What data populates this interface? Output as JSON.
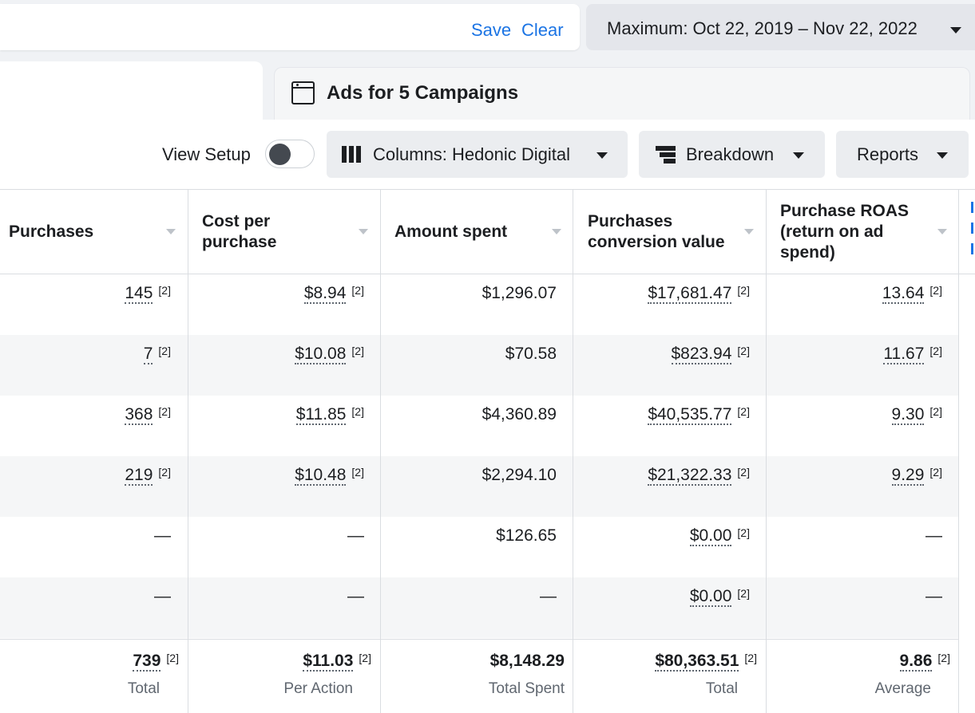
{
  "topbar": {
    "save_label": "Save",
    "clear_label": "Clear",
    "date_range": "Maximum: Oct 22, 2019 – Nov 22, 2022"
  },
  "tab": {
    "title": "Ads for 5 Campaigns"
  },
  "toolbar": {
    "view_setup_label": "View Setup",
    "view_setup_on": false,
    "columns_label": "Columns: Hedonic Digital",
    "breakdown_label": "Breakdown",
    "reports_label": "Reports"
  },
  "table": {
    "headers": [
      "Purchases",
      "Cost per purchase",
      "Amount spent",
      "Purchases conversion value",
      "Purchase ROAS (return on ad spend)"
    ],
    "rows": [
      [
        "145",
        "$8.94",
        "$1,296.07",
        "$17,681.47",
        "13.64"
      ],
      [
        "7",
        "$10.08",
        "$70.58",
        "$823.94",
        "11.67"
      ],
      [
        "368",
        "$11.85",
        "$4,360.89",
        "$40,535.77",
        "9.30"
      ],
      [
        "219",
        "$10.48",
        "$2,294.10",
        "$21,322.33",
        "9.29"
      ],
      [
        "—",
        "—",
        "$126.65",
        "$0.00",
        "—"
      ],
      [
        "—",
        "—",
        "—",
        "$0.00",
        "—"
      ]
    ],
    "ref_mark": "[2]",
    "totals": [
      "739",
      "$11.03",
      "$8,148.29",
      "$80,363.51",
      "9.86"
    ],
    "totals_sub": [
      "Total",
      "Per Action",
      "Total Spent",
      "Total",
      "Average"
    ]
  },
  "colors": {
    "accent": "#1b74e4",
    "background": "#f0f2f5",
    "button_bg": "#ebedf0",
    "row_alt": "#f5f6f7"
  }
}
